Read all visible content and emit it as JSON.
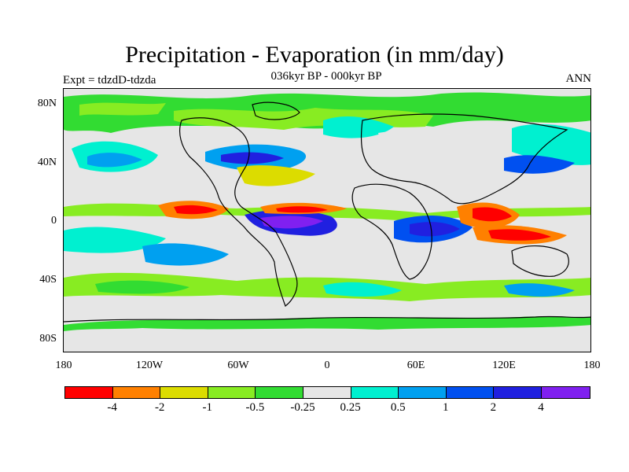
{
  "title": "Precipitation - Evaporation (in mm/day)",
  "subtitle": "036kyr BP - 000kyr BP",
  "left_label": "Expt = tdzdD-tdzda",
  "right_label": "ANN",
  "lat_labels": [
    "80N",
    "40N",
    "0",
    "40S",
    "80S"
  ],
  "lon_labels": [
    "180",
    "120W",
    "60W",
    "0",
    "60E",
    "120E",
    "180"
  ],
  "colorbar": {
    "colors": [
      "#ff0000",
      "#ff8000",
      "#dcdc00",
      "#88ec22",
      "#32dc32",
      "#e6e6e6",
      "#00f0d0",
      "#00a0f0",
      "#0050f0",
      "#2020e0",
      "#8020f0"
    ],
    "labels": [
      "-4",
      "-2",
      "-1",
      "-0.5",
      "-0.25",
      "0.25",
      "0.5",
      "1",
      "2",
      "4"
    ]
  }
}
